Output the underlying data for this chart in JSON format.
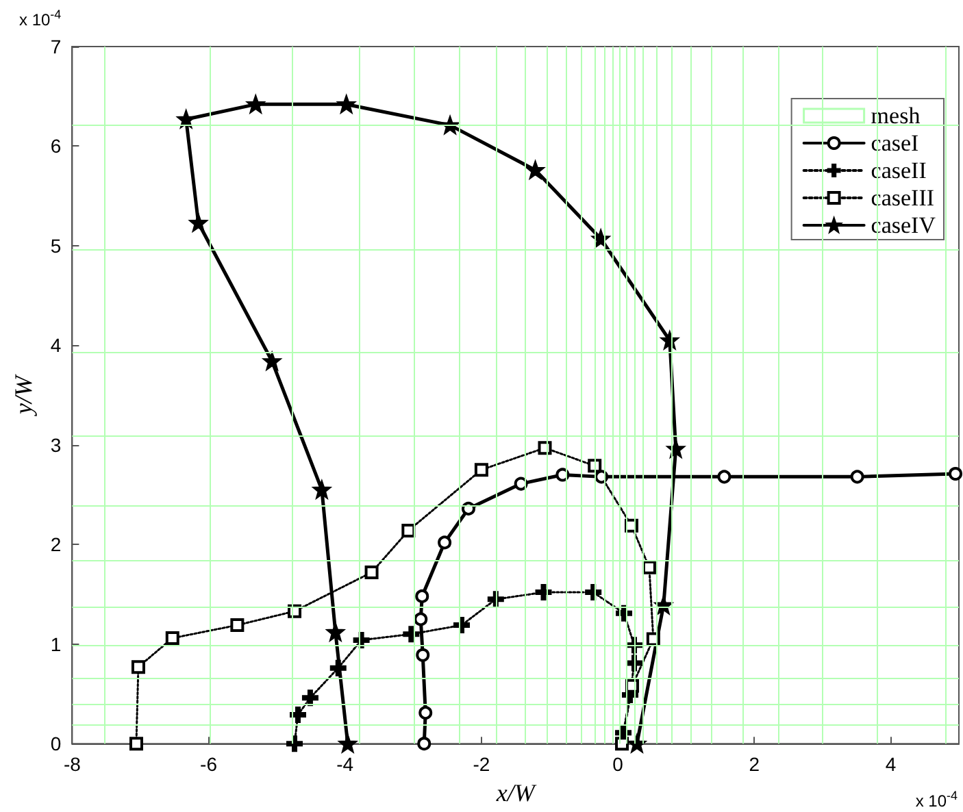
{
  "chart_data": {
    "type": "line",
    "xlabel": "x/W",
    "ylabel": "y/W",
    "annotations": [
      "x 10$^{-4}$",
      "x 10$^{-4}$"
    ],
    "xlim": [
      -8,
      5
    ],
    "xticks": [
      -8,
      -6,
      -4,
      -2,
      0,
      2,
      4
    ],
    "ylim": [
      0,
      7
    ],
    "yticks": [
      0,
      1,
      2,
      3,
      4,
      5,
      6,
      7
    ],
    "grid": false,
    "legend": "top right",
    "ref_lines": [
      {
        "axis": "x",
        "value": -7.52,
        "color": "#b3ffb3"
      },
      {
        "axis": "x",
        "value": -5.98,
        "color": "#b3ffb3"
      },
      {
        "axis": "x",
        "value": -4.77,
        "color": "#b3ffb3"
      },
      {
        "axis": "x",
        "value": -3.79,
        "color": "#b3ffb3"
      },
      {
        "axis": "x",
        "value": -2.98,
        "color": "#b3ffb3"
      },
      {
        "axis": "x",
        "value": -2.32,
        "color": "#b3ffb3"
      },
      {
        "axis": "x",
        "value": -1.79,
        "color": "#b3ffb3"
      },
      {
        "axis": "x",
        "value": -1.37,
        "color": "#b3ffb3"
      },
      {
        "axis": "x",
        "value": -1.04,
        "color": "#b3ffb3"
      },
      {
        "axis": "x",
        "value": -0.76,
        "color": "#b3ffb3"
      },
      {
        "axis": "x",
        "value": -0.53,
        "color": "#b3ffb3"
      },
      {
        "axis": "x",
        "value": -0.34,
        "color": "#b3ffb3"
      },
      {
        "axis": "x",
        "value": -0.19,
        "color": "#b3ffb3"
      },
      {
        "axis": "x",
        "value": -0.08,
        "color": "#b3ffb3"
      },
      {
        "axis": "x",
        "value": 0.02,
        "color": "#b3ffb3"
      },
      {
        "axis": "x",
        "value": 0.12,
        "color": "#b3ffb3"
      },
      {
        "axis": "x",
        "value": 0.24,
        "color": "#b3ffb3"
      },
      {
        "axis": "x",
        "value": 0.36,
        "color": "#b3ffb3"
      },
      {
        "axis": "x",
        "value": 0.56,
        "color": "#b3ffb3"
      },
      {
        "axis": "x",
        "value": 0.79,
        "color": "#b3ffb3"
      },
      {
        "axis": "x",
        "value": 1.07,
        "color": "#b3ffb3"
      },
      {
        "axis": "x",
        "value": 1.38,
        "color": "#b3ffb3"
      },
      {
        "axis": "x",
        "value": 1.83,
        "color": "#b3ffb3"
      },
      {
        "axis": "x",
        "value": 2.35,
        "color": "#b3ffb3"
      },
      {
        "axis": "x",
        "value": 3.0,
        "color": "#b3ffb3"
      },
      {
        "axis": "x",
        "value": 3.79,
        "color": "#b3ffb3"
      },
      {
        "axis": "x",
        "value": 4.8,
        "color": "#b3ffb3"
      },
      {
        "axis": "y",
        "value": 0.19,
        "color": "#b3ffb3"
      },
      {
        "axis": "y",
        "value": 0.4,
        "color": "#b3ffb3"
      },
      {
        "axis": "y",
        "value": 0.66,
        "color": "#b3ffb3"
      },
      {
        "axis": "y",
        "value": 0.99,
        "color": "#b3ffb3"
      },
      {
        "axis": "y",
        "value": 1.37,
        "color": "#b3ffb3"
      },
      {
        "axis": "y",
        "value": 1.84,
        "color": "#b3ffb3"
      },
      {
        "axis": "y",
        "value": 2.39,
        "color": "#b3ffb3"
      },
      {
        "axis": "y",
        "value": 3.09,
        "color": "#b3ffb3"
      },
      {
        "axis": "y",
        "value": 3.93,
        "color": "#b3ffb3"
      },
      {
        "axis": "y",
        "value": 4.96,
        "color": "#b3ffb3"
      },
      {
        "axis": "y",
        "value": 6.21,
        "color": "#b3ffb3"
      }
    ],
    "series": [
      {
        "name": "mesh",
        "color": "#b3ffb3"
      },
      {
        "name": "caseI",
        "color": "#000000",
        "marker": "circle",
        "line_style": "solid",
        "x": [
          -2.84,
          -2.82,
          -2.86,
          -2.89,
          -2.87,
          -2.54,
          -2.19,
          -1.42,
          -0.81,
          -0.24,
          1.56,
          3.51,
          4.95
        ],
        "values": [
          0,
          0.31,
          0.89,
          1.25,
          1.48,
          2.02,
          2.36,
          2.61,
          2.7,
          2.68,
          2.68,
          2.68,
          2.71
        ]
      },
      {
        "name": "caseII",
        "color": "#000000",
        "marker": "cross",
        "line_style": "dotted",
        "x": [
          -4.74,
          -4.69,
          -4.51,
          -4.1,
          -3.76,
          -3.03,
          -2.29,
          -1.79,
          -1.09,
          -0.36,
          0.09,
          0.24,
          0.24,
          0.18,
          0.08
        ],
        "values": [
          0,
          0.29,
          0.46,
          0.76,
          1.04,
          1.1,
          1.19,
          1.45,
          1.52,
          1.52,
          1.31,
          0.99,
          0.81,
          0.49,
          0.11
        ]
      },
      {
        "name": "caseIII",
        "color": "#000000",
        "marker": "square",
        "line_style": "dotted",
        "x": [
          -7.06,
          -7.03,
          -6.53,
          -5.58,
          -4.74,
          -3.61,
          -3.07,
          -2.0,
          -1.07,
          -0.34,
          0.2,
          0.46,
          0.52,
          0.21,
          0.06
        ],
        "values": [
          0,
          0.77,
          1.06,
          1.19,
          1.33,
          1.72,
          2.14,
          2.75,
          2.97,
          2.79,
          2.19,
          1.77,
          1.05,
          0.58,
          0
        ]
      },
      {
        "name": "caseIV",
        "color": "#000000",
        "marker": "star",
        "line_style": "solid",
        "x": [
          0.28,
          0.67,
          0.85,
          0.76,
          -0.25,
          -1.21,
          -2.46,
          -3.98,
          -5.31,
          -6.33,
          -6.15,
          -5.07,
          -4.34,
          -4.14,
          -3.96
        ],
        "values": [
          0,
          1.39,
          2.96,
          4.05,
          5.07,
          5.76,
          6.21,
          6.42,
          6.42,
          6.27,
          5.23,
          3.84,
          2.55,
          1.12,
          0
        ]
      }
    ]
  }
}
